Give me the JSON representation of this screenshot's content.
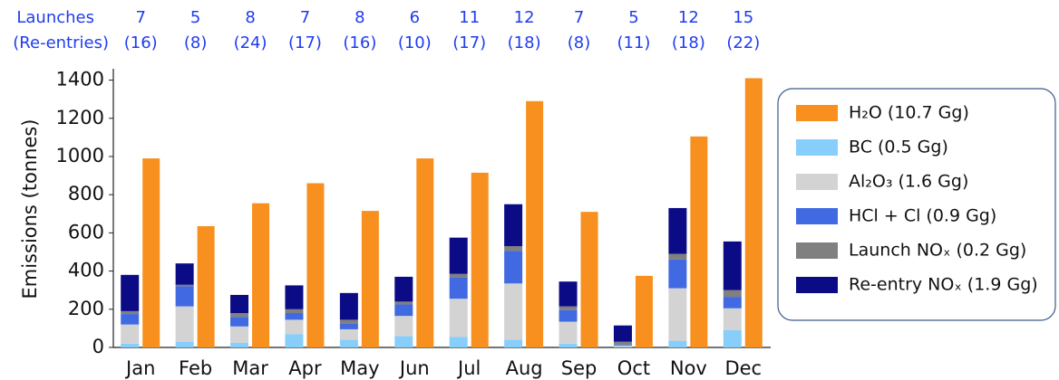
{
  "chart_data": {
    "type": "bar",
    "y_label": "Emissions (tonnes)",
    "categories": [
      "Jan",
      "Feb",
      "Mar",
      "Apr",
      "May",
      "Jun",
      "Jul",
      "Aug",
      "Sep",
      "Oct",
      "Nov",
      "Dec"
    ],
    "launches_label": "Launches",
    "launches": [
      7,
      5,
      8,
      7,
      8,
      6,
      11,
      12,
      7,
      5,
      12,
      15
    ],
    "reentries_label": "(Re-entries)",
    "reentries": {
      "values": [
        16,
        8,
        24,
        17,
        16,
        10,
        17,
        18,
        8,
        11,
        18,
        22
      ],
      "value_labels": [
        "(16)",
        "(8)",
        "(24)",
        "(17)",
        "(16)",
        "(10)",
        "(17)",
        "(18)",
        "(8)",
        "(11)",
        "(18)",
        "(22)"
      ]
    },
    "series": [
      {
        "name": "H₂O (10.7 Gg)",
        "color": "#f7901e",
        "values": [
          990,
          635,
          755,
          860,
          715,
          990,
          915,
          1290,
          710,
          375,
          1105,
          1410
        ]
      },
      {
        "name": "BC (0.5 Gg)",
        "color": "#87cefa",
        "values": [
          20,
          30,
          25,
          70,
          40,
          60,
          55,
          40,
          20,
          5,
          35,
          90
        ]
      },
      {
        "name": "Al₂O₃ (1.6 Gg)",
        "color": "#d3d3d3",
        "values": [
          100,
          185,
          85,
          75,
          55,
          105,
          200,
          295,
          115,
          5,
          275,
          115
        ]
      },
      {
        "name": "HCl + Cl (0.9 Gg)",
        "color": "#4169e1",
        "values": [
          55,
          105,
          50,
          35,
          30,
          60,
          110,
          170,
          60,
          5,
          150,
          60
        ]
      },
      {
        "name": "Launch NOₓ (0.2 Gg)",
        "color": "#808080",
        "values": [
          15,
          8,
          20,
          20,
          20,
          15,
          20,
          25,
          20,
          15,
          30,
          35
        ]
      },
      {
        "name": "Re-entry NOₓ (1.9 Gg)",
        "color": "#0b0b86",
        "values": [
          190,
          112,
          95,
          125,
          140,
          130,
          190,
          220,
          130,
          85,
          240,
          255
        ]
      }
    ],
    "ylim": [
      0,
      1450
    ],
    "yticks": [
      0,
      200,
      400,
      600,
      800,
      1000,
      1200,
      1400
    ]
  }
}
